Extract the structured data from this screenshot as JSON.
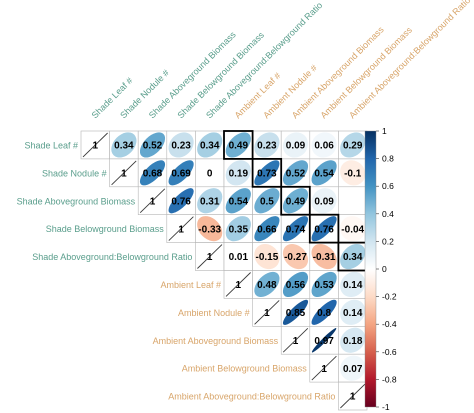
{
  "chart_data": {
    "type": "heatmap",
    "variant": "correlogram-upper-ellipse-number",
    "variables": [
      "Shade Leaf #",
      "Shade Nodule #",
      "Shade Aboveground Biomass",
      "Shade Belowground Biomass",
      "Shade Aboveground:Belowground Ratio",
      "Ambient Leaf #",
      "Ambient Nodule #",
      "Ambient Aboveground Biomass",
      "Ambient Belowground Biomass",
      "Ambient Aboveground:Belowground Ratio"
    ],
    "groups": [
      "Shade",
      "Shade",
      "Shade",
      "Shade",
      "Shade",
      "Ambient",
      "Ambient",
      "Ambient",
      "Ambient",
      "Ambient"
    ],
    "group_colors": {
      "Shade": "#5a9e8c",
      "Ambient": "#d8a56a"
    },
    "matrix": [
      [
        1,
        0.34,
        0.52,
        0.23,
        0.34,
        0.49,
        0.23,
        0.09,
        0.06,
        0.29
      ],
      [
        null,
        1,
        0.68,
        0.69,
        0,
        0.19,
        0.73,
        0.52,
        0.54,
        -0.1
      ],
      [
        null,
        null,
        1,
        0.76,
        0.31,
        0.54,
        0.5,
        0.49,
        0.09,
        null
      ],
      [
        null,
        null,
        null,
        1,
        -0.33,
        0.35,
        0.66,
        0.74,
        0.76,
        -0.04
      ],
      [
        null,
        null,
        null,
        null,
        1,
        0.01,
        -0.15,
        -0.27,
        -0.31,
        0.34
      ],
      [
        null,
        null,
        null,
        null,
        null,
        1,
        0.48,
        0.56,
        0.53,
        0.14
      ],
      [
        null,
        null,
        null,
        null,
        null,
        null,
        1,
        0.85,
        0.8,
        0.14
      ],
      [
        null,
        null,
        null,
        null,
        null,
        null,
        null,
        1,
        0.97,
        0.18
      ],
      [
        null,
        null,
        null,
        null,
        null,
        null,
        null,
        null,
        1,
        0.07
      ],
      [
        null,
        null,
        null,
        null,
        null,
        null,
        null,
        null,
        null,
        1
      ]
    ],
    "highlighted_cells": [
      [
        0,
        5
      ],
      [
        1,
        6
      ],
      [
        2,
        7
      ],
      [
        3,
        8
      ],
      [
        4,
        9
      ]
    ],
    "colorbar": {
      "range": [
        -1,
        1
      ],
      "ticks": [
        "1",
        "0.8",
        "0.6",
        "0.4",
        "0.2",
        "0",
        "-0.2",
        "-0.4",
        "-0.6",
        "-0.8",
        "-1"
      ],
      "colors": {
        "neg": "#67001f",
        "mid": "#ffffff",
        "pos": "#053061"
      }
    }
  }
}
